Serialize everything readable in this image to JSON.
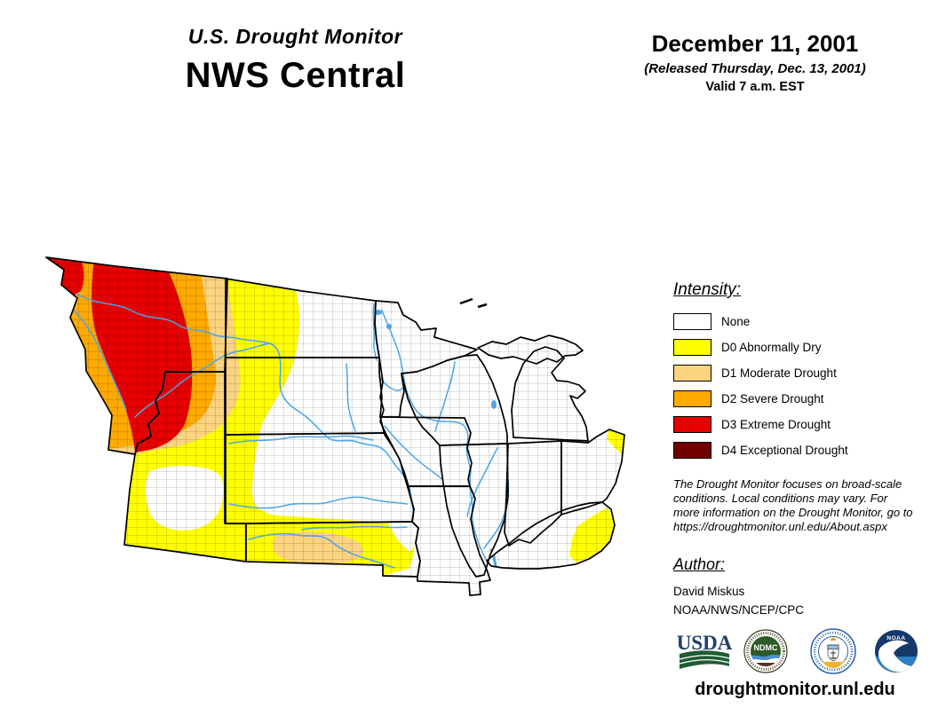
{
  "header": {
    "title_line1": "U.S. Drought Monitor",
    "title_line2": "NWS Central",
    "date": "December 11, 2001",
    "released": "(Released Thursday, Dec. 13, 2001)",
    "valid": "Valid 7 a.m. EST"
  },
  "legend": {
    "heading": "Intensity:",
    "items": [
      {
        "label": "None",
        "color": "#FFFFFF"
      },
      {
        "label": "D0 Abnormally Dry",
        "color": "#FFFF00"
      },
      {
        "label": "D1 Moderate Drought",
        "color": "#FCD37F"
      },
      {
        "label": "D2 Severe Drought",
        "color": "#FFAA00"
      },
      {
        "label": "D3 Extreme Drought",
        "color": "#E60000"
      },
      {
        "label": "D4 Exceptional Drought",
        "color": "#730000"
      }
    ]
  },
  "disclaimer": "The Drought Monitor focuses on broad-scale conditions. Local conditions may vary. For more information on the Drought Monitor, go to https://droughtmonitor.unl.edu/About.aspx",
  "author": {
    "heading": "Author:",
    "name": "David Miskus",
    "affiliation": "NOAA/NWS/NCEP/CPC"
  },
  "footer": {
    "url": "droughtmonitor.unl.edu",
    "logos": [
      "usda-logo",
      "ndmc-logo",
      "commerce-seal-logo",
      "noaa-logo"
    ],
    "ndmc_text": "NDMC",
    "noaa_text": "NOAA",
    "usda_text": "USDA"
  },
  "map": {
    "states_depicted": [
      "Montana",
      "Wyoming",
      "North Dakota",
      "South Dakota",
      "Nebraska",
      "Kansas",
      "Minnesota",
      "Iowa",
      "Missouri",
      "Wisconsin",
      "Illinois",
      "Michigan",
      "Indiana",
      "Ohio",
      "Kentucky"
    ],
    "drought_colors": {
      "none": "#FFFFFF",
      "d0": "#FFFF00",
      "d1": "#FCD37F",
      "d2": "#FFAA00",
      "d3": "#E60000",
      "d4": "#730000"
    },
    "river_color": "#4AA5E8",
    "border_color": "#000000"
  }
}
